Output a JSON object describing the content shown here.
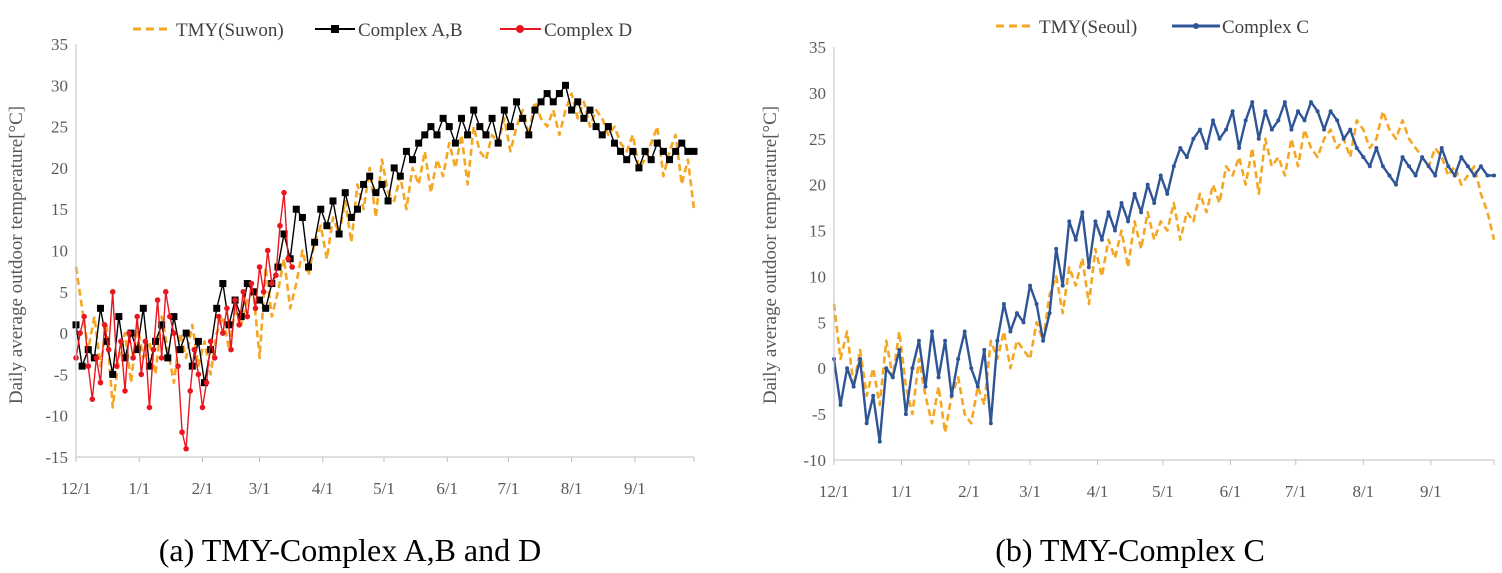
{
  "chart_data": [
    {
      "type": "line",
      "caption": "(a) TMY-Complex A,B and D",
      "ylabel": "Daily average outdoor temperature[°C]",
      "ylim": [
        -15,
        35
      ],
      "yticks": [
        "-15",
        "-10",
        "-5",
        "0",
        "5",
        "10",
        "15",
        "20",
        "25",
        "30",
        "35"
      ],
      "x_range_days": [
        0,
        303
      ],
      "xtick_labels": [
        "12/1",
        "1/1",
        "2/1",
        "3/1",
        "4/1",
        "5/1",
        "6/1",
        "7/1",
        "8/1",
        "9/1"
      ],
      "xtick_days": [
        0,
        31,
        62,
        90,
        121,
        151,
        182,
        212,
        243,
        274
      ],
      "series": [
        {
          "name": "TMY(Suwon)",
          "color": "#F5A623",
          "style": "dashed",
          "x": [
            0,
            3,
            6,
            9,
            12,
            15,
            18,
            21,
            24,
            27,
            30,
            33,
            36,
            39,
            42,
            45,
            48,
            51,
            54,
            57,
            60,
            63,
            66,
            69,
            72,
            75,
            78,
            81,
            84,
            87,
            90,
            93,
            96,
            99,
            102,
            105,
            108,
            111,
            114,
            117,
            120,
            123,
            126,
            129,
            132,
            135,
            138,
            141,
            144,
            147,
            150,
            153,
            156,
            159,
            162,
            165,
            168,
            171,
            174,
            177,
            180,
            183,
            186,
            189,
            192,
            195,
            198,
            201,
            204,
            207,
            210,
            213,
            216,
            219,
            222,
            225,
            228,
            231,
            234,
            237,
            240,
            243,
            246,
            249,
            252,
            255,
            258,
            261,
            264,
            267,
            270,
            273,
            276,
            279,
            282,
            285,
            288,
            291,
            294,
            297,
            300,
            303
          ],
          "values": [
            8,
            3,
            -2,
            2,
            -4,
            1,
            -9,
            -3,
            0,
            -6,
            1,
            -3,
            -1,
            -5,
            2,
            -2,
            -6,
            0,
            -3,
            1,
            -4,
            -1,
            -5,
            0,
            2,
            -2,
            3,
            1,
            4,
            5,
            -3,
            8,
            2,
            5,
            9,
            3,
            6,
            10,
            7,
            11,
            13,
            9,
            14,
            12,
            16,
            11,
            18,
            15,
            20,
            14,
            21,
            17,
            16,
            19,
            15,
            20,
            18,
            22,
            17,
            21,
            19,
            23,
            20,
            24,
            18,
            25,
            22,
            21,
            24,
            23,
            26,
            22,
            25,
            27,
            24,
            28,
            26,
            25,
            27,
            24,
            27,
            29,
            26,
            28,
            25,
            27,
            26,
            24,
            25,
            23,
            22,
            24,
            20,
            21,
            23,
            25,
            19,
            22,
            24,
            18,
            21,
            15
          ]
        },
        {
          "name": "Complex A,B",
          "color": "#000000",
          "style": "solid-square",
          "x": [
            0,
            3,
            6,
            9,
            12,
            15,
            18,
            21,
            24,
            27,
            30,
            33,
            36,
            39,
            42,
            45,
            48,
            51,
            54,
            57,
            60,
            63,
            66,
            69,
            72,
            75,
            78,
            81,
            84,
            87,
            90,
            93,
            96,
            99,
            102,
            105,
            108,
            111,
            114,
            117,
            120,
            123,
            126,
            129,
            132,
            135,
            138,
            141,
            144,
            147,
            150,
            153,
            156,
            159,
            162,
            165,
            168,
            171,
            174,
            177,
            180,
            183,
            186,
            189,
            192,
            195,
            198,
            201,
            204,
            207,
            210,
            213,
            216,
            219,
            222,
            225,
            228,
            231,
            234,
            237,
            240,
            243,
            246,
            249,
            252,
            255,
            258,
            261,
            264,
            267,
            270,
            273,
            276,
            279,
            282,
            285,
            288,
            291,
            294,
            297,
            300,
            303
          ],
          "values": [
            1,
            -4,
            -2,
            -3,
            3,
            -1,
            -5,
            2,
            -3,
            0,
            -2,
            3,
            -4,
            -1,
            1,
            -3,
            2,
            -2,
            0,
            -4,
            -1,
            -6,
            -2,
            3,
            6,
            1,
            4,
            2,
            6,
            5,
            4,
            3,
            6,
            8,
            12,
            9,
            15,
            14,
            8,
            11,
            15,
            13,
            16,
            12,
            17,
            14,
            15,
            18,
            19,
            17,
            18,
            16,
            20,
            19,
            22,
            21,
            23,
            24,
            25,
            24,
            26,
            25,
            23,
            26,
            24,
            27,
            25,
            24,
            26,
            23,
            27,
            25,
            28,
            26,
            24,
            27,
            28,
            29,
            28,
            29,
            30,
            27,
            28,
            26,
            27,
            25,
            24,
            25,
            23,
            22,
            21,
            22,
            20,
            22,
            21,
            23,
            22,
            21,
            22,
            23,
            22,
            22
          ]
        },
        {
          "name": "Complex D",
          "color": "#E8161F",
          "style": "solid-dot",
          "x": [
            0,
            2,
            4,
            6,
            8,
            10,
            12,
            14,
            16,
            18,
            20,
            22,
            24,
            26,
            28,
            30,
            32,
            34,
            36,
            38,
            40,
            42,
            44,
            46,
            48,
            50,
            52,
            54,
            56,
            58,
            60,
            62,
            64,
            66,
            68,
            70,
            72,
            74,
            76,
            78,
            80,
            82,
            84,
            86,
            88,
            90,
            92,
            94,
            96,
            98,
            100,
            102,
            104,
            106
          ],
          "values": [
            -3,
            0,
            2,
            -4,
            -8,
            -3,
            -6,
            1,
            -2,
            5,
            -4,
            -1,
            -7,
            0,
            -3,
            2,
            -5,
            -1,
            -9,
            -2,
            4,
            -3,
            5,
            2,
            0,
            -4,
            -12,
            -14,
            -7,
            -2,
            -5,
            -9,
            -6,
            -1,
            -3,
            2,
            0,
            3,
            -2,
            4,
            1,
            5,
            2,
            6,
            3,
            8,
            5,
            10,
            6,
            7,
            13,
            17,
            9,
            8
          ]
        }
      ]
    },
    {
      "type": "line",
      "caption": "(b) TMY-Complex C",
      "ylabel": "Daily average outdoor temperature[°C]",
      "ylim": [
        -10,
        35
      ],
      "yticks": [
        "-10",
        "-5",
        "0",
        "5",
        "10",
        "15",
        "20",
        "25",
        "30",
        "35"
      ],
      "x_range_days": [
        0,
        303
      ],
      "xtick_labels": [
        "12/1",
        "1/1",
        "2/1",
        "3/1",
        "4/1",
        "5/1",
        "6/1",
        "7/1",
        "8/1",
        "9/1"
      ],
      "xtick_days": [
        0,
        31,
        62,
        90,
        121,
        151,
        182,
        212,
        243,
        274
      ],
      "series": [
        {
          "name": "TMY(Seoul)",
          "color": "#F5A623",
          "style": "dashed",
          "x": [
            0,
            3,
            6,
            9,
            12,
            15,
            18,
            21,
            24,
            27,
            30,
            33,
            36,
            39,
            42,
            45,
            48,
            51,
            54,
            57,
            60,
            63,
            66,
            69,
            72,
            75,
            78,
            81,
            84,
            87,
            90,
            93,
            96,
            99,
            102,
            105,
            108,
            111,
            114,
            117,
            120,
            123,
            126,
            129,
            132,
            135,
            138,
            141,
            144,
            147,
            150,
            153,
            156,
            159,
            162,
            165,
            168,
            171,
            174,
            177,
            180,
            183,
            186,
            189,
            192,
            195,
            198,
            201,
            204,
            207,
            210,
            213,
            216,
            219,
            222,
            225,
            228,
            231,
            234,
            237,
            240,
            243,
            246,
            249,
            252,
            255,
            258,
            261,
            264,
            267,
            270,
            273,
            276,
            279,
            282,
            285,
            288,
            291,
            294,
            297,
            300,
            303
          ],
          "values": [
            7,
            1,
            4,
            -2,
            2,
            -3,
            0,
            -4,
            3,
            -1,
            4,
            -2,
            -5,
            1,
            -3,
            -6,
            -2,
            -7,
            -3,
            -1,
            -5,
            -6,
            -2,
            -4,
            3,
            1,
            4,
            0,
            3,
            2,
            1,
            5,
            3,
            8,
            10,
            6,
            11,
            9,
            12,
            7,
            13,
            10,
            14,
            12,
            15,
            11,
            16,
            13,
            17,
            14,
            16,
            15,
            18,
            14,
            17,
            16,
            19,
            17,
            20,
            18,
            22,
            21,
            23,
            20,
            24,
            19,
            25,
            22,
            23,
            21,
            25,
            22,
            26,
            24,
            23,
            25,
            26,
            24,
            25,
            23,
            27,
            26,
            24,
            25,
            28,
            26,
            25,
            27,
            25,
            24,
            23,
            22,
            24,
            23,
            21,
            22,
            20,
            21,
            22,
            19,
            17,
            14
          ]
        },
        {
          "name": "Complex C",
          "color": "#2F5597",
          "style": "solid-dot",
          "x": [
            0,
            3,
            6,
            9,
            12,
            15,
            18,
            21,
            24,
            27,
            30,
            33,
            36,
            39,
            42,
            45,
            48,
            51,
            54,
            57,
            60,
            63,
            66,
            69,
            72,
            75,
            78,
            81,
            84,
            87,
            90,
            93,
            96,
            99,
            102,
            105,
            108,
            111,
            114,
            117,
            120,
            123,
            126,
            129,
            132,
            135,
            138,
            141,
            144,
            147,
            150,
            153,
            156,
            159,
            162,
            165,
            168,
            171,
            174,
            177,
            180,
            183,
            186,
            189,
            192,
            195,
            198,
            201,
            204,
            207,
            210,
            213,
            216,
            219,
            222,
            225,
            228,
            231,
            234,
            237,
            240,
            243,
            246,
            249,
            252,
            255,
            258,
            261,
            264,
            267,
            270,
            273,
            276,
            279,
            282,
            285,
            288,
            291,
            294,
            297,
            300,
            303
          ],
          "values": [
            1,
            -4,
            0,
            -2,
            1,
            -6,
            -3,
            -8,
            0,
            -1,
            2,
            -5,
            0,
            3,
            -2,
            4,
            -1,
            3,
            -3,
            1,
            4,
            0,
            -2,
            2,
            -6,
            3,
            7,
            4,
            6,
            5,
            9,
            7,
            3,
            6,
            13,
            9,
            16,
            14,
            17,
            11,
            16,
            14,
            17,
            15,
            18,
            16,
            19,
            17,
            20,
            18,
            21,
            19,
            22,
            24,
            23,
            25,
            26,
            24,
            27,
            25,
            26,
            28,
            24,
            27,
            29,
            25,
            28,
            26,
            27,
            29,
            26,
            28,
            27,
            29,
            28,
            26,
            28,
            27,
            25,
            26,
            24,
            23,
            22,
            24,
            22,
            21,
            20,
            23,
            22,
            21,
            23,
            22,
            21,
            24,
            22,
            21,
            23,
            22,
            21,
            22,
            21,
            21
          ]
        }
      ]
    }
  ]
}
